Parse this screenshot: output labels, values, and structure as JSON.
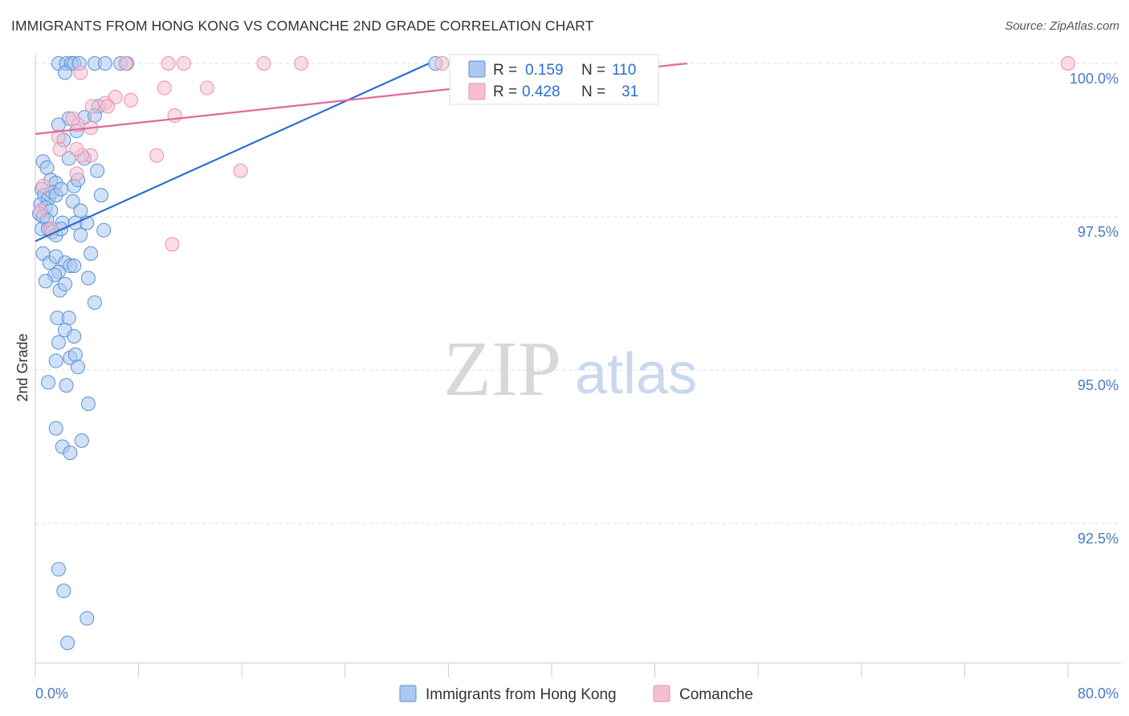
{
  "title": "IMMIGRANTS FROM HONG KONG VS COMANCHE 2ND GRADE CORRELATION CHART",
  "source": "Source: ZipAtlas.com",
  "watermark": {
    "zip": "ZIP",
    "atlas": "atlas"
  },
  "colors": {
    "blue_fill": "#aac8f0",
    "blue_stroke": "#5a8fd8",
    "blue_line": "#2a6fd0",
    "pink_fill": "#f6bfd0",
    "pink_stroke": "#e890b0",
    "pink_line": "#e06a98",
    "tick_text": "#4a7ac4",
    "grid": "#dddddd"
  },
  "legend": {
    "rows": [
      {
        "r_label": "R =",
        "r_value": "0.159",
        "n_label": "N =",
        "n_value": "110",
        "color": "blue"
      },
      {
        "r_label": "R =",
        "r_value": "0.428",
        "n_label": "N =",
        "n_value": "31",
        "color": "pink"
      }
    ]
  },
  "bottom_legend": [
    {
      "label": "Immigrants from Hong Kong",
      "color": "blue"
    },
    {
      "label": "Comanche",
      "color": "pink"
    }
  ],
  "chart_data": {
    "type": "scatter",
    "title": "IMMIGRANTS FROM HONG KONG VS COMANCHE 2ND GRADE CORRELATION CHART",
    "xlabel": "",
    "ylabel": "2nd Grade",
    "xlim": [
      0,
      80
    ],
    "ylim": [
      90.2,
      100.5
    ],
    "x_tick_labels": [
      {
        "value": 0,
        "label": "0.0%"
      },
      {
        "value": 80,
        "label": "80.0%"
      }
    ],
    "x_minor_ticks": [
      0,
      8,
      16,
      24,
      32,
      40,
      48,
      56,
      64,
      72,
      80
    ],
    "y_ticks": [
      {
        "value": 100,
        "label": "100.0%"
      },
      {
        "value": 97.5,
        "label": "97.5%"
      },
      {
        "value": 95,
        "label": "95.0%"
      },
      {
        "value": 92.5,
        "label": "92.5%"
      }
    ],
    "grid": "horizontal dashed",
    "legend_placement": "top",
    "series": [
      {
        "name": "Immigrants from Hong Kong",
        "color": "blue",
        "R": 0.159,
        "N": 110,
        "trend": {
          "x": [
            0,
            30.5
          ],
          "y": [
            97.1,
            100.0
          ]
        },
        "points": [
          [
            1.8,
            100
          ],
          [
            2.4,
            100
          ],
          [
            2.8,
            100
          ],
          [
            3.0,
            100
          ],
          [
            3.4,
            100
          ],
          [
            4.6,
            100
          ],
          [
            5.4,
            100
          ],
          [
            6.6,
            100
          ],
          [
            7.1,
            100
          ],
          [
            31.0,
            100
          ],
          [
            2.3,
            99.85
          ],
          [
            4.9,
            99.3
          ],
          [
            2.6,
            99.1
          ],
          [
            1.8,
            99.0
          ],
          [
            3.8,
            99.12
          ],
          [
            4.6,
            99.15
          ],
          [
            3.2,
            98.9
          ],
          [
            2.2,
            98.75
          ],
          [
            0.6,
            98.4
          ],
          [
            0.9,
            98.3
          ],
          [
            1.2,
            98.1
          ],
          [
            1.6,
            98.05
          ],
          [
            2.6,
            98.45
          ],
          [
            3.8,
            98.45
          ],
          [
            4.8,
            98.25
          ],
          [
            3.0,
            98.0
          ],
          [
            3.3,
            98.1
          ],
          [
            0.5,
            97.95
          ],
          [
            0.7,
            97.85
          ],
          [
            1.0,
            97.8
          ],
          [
            1.3,
            97.9
          ],
          [
            1.6,
            97.85
          ],
          [
            2.0,
            97.95
          ],
          [
            0.4,
            97.7
          ],
          [
            0.8,
            97.65
          ],
          [
            1.2,
            97.6
          ],
          [
            2.9,
            97.75
          ],
          [
            5.1,
            97.85
          ],
          [
            0.3,
            97.55
          ],
          [
            0.6,
            97.5
          ],
          [
            0.9,
            97.45
          ],
          [
            2.1,
            97.4
          ],
          [
            3.1,
            97.4
          ],
          [
            4.0,
            97.4
          ],
          [
            3.5,
            97.6
          ],
          [
            0.5,
            97.3
          ],
          [
            1.0,
            97.3
          ],
          [
            1.3,
            97.25
          ],
          [
            1.6,
            97.2
          ],
          [
            2.0,
            97.3
          ],
          [
            3.5,
            97.2
          ],
          [
            5.3,
            97.28
          ],
          [
            0.6,
            96.9
          ],
          [
            1.1,
            96.75
          ],
          [
            1.6,
            96.85
          ],
          [
            2.3,
            96.75
          ],
          [
            2.7,
            96.7
          ],
          [
            3.0,
            96.7
          ],
          [
            1.8,
            96.6
          ],
          [
            1.5,
            96.55
          ],
          [
            4.3,
            96.9
          ],
          [
            0.8,
            96.45
          ],
          [
            1.9,
            96.3
          ],
          [
            2.3,
            96.4
          ],
          [
            4.1,
            96.5
          ],
          [
            4.6,
            96.1
          ],
          [
            1.7,
            95.85
          ],
          [
            2.6,
            95.85
          ],
          [
            2.3,
            95.65
          ],
          [
            3.0,
            95.55
          ],
          [
            1.8,
            95.45
          ],
          [
            2.7,
            95.2
          ],
          [
            3.1,
            95.25
          ],
          [
            1.6,
            95.15
          ],
          [
            3.3,
            95.05
          ],
          [
            1.0,
            94.8
          ],
          [
            2.4,
            94.75
          ],
          [
            4.1,
            94.45
          ],
          [
            1.6,
            94.05
          ],
          [
            2.1,
            93.75
          ],
          [
            2.7,
            93.65
          ],
          [
            3.6,
            93.85
          ],
          [
            1.8,
            91.75
          ],
          [
            2.2,
            91.4
          ],
          [
            4.0,
            90.95
          ],
          [
            2.5,
            90.55
          ]
        ]
      },
      {
        "name": "Comanche",
        "color": "pink",
        "R": 0.428,
        "N": 31,
        "trend": {
          "x": [
            0,
            50.5
          ],
          "y": [
            98.85,
            100.0
          ]
        },
        "points": [
          [
            7.0,
            100
          ],
          [
            10.3,
            100
          ],
          [
            11.5,
            100
          ],
          [
            17.7,
            100
          ],
          [
            20.6,
            100
          ],
          [
            31.5,
            100
          ],
          [
            80.0,
            100
          ],
          [
            3.5,
            99.85
          ],
          [
            10.0,
            99.6
          ],
          [
            13.3,
            99.6
          ],
          [
            5.4,
            99.35
          ],
          [
            6.2,
            99.45
          ],
          [
            7.4,
            99.4
          ],
          [
            4.4,
            99.3
          ],
          [
            5.6,
            99.3
          ],
          [
            3.3,
            99.0
          ],
          [
            4.3,
            98.95
          ],
          [
            10.8,
            99.15
          ],
          [
            2.9,
            99.1
          ],
          [
            1.8,
            98.8
          ],
          [
            4.3,
            98.5
          ],
          [
            9.4,
            98.5
          ],
          [
            3.6,
            98.5
          ],
          [
            3.2,
            98.6
          ],
          [
            1.9,
            98.6
          ],
          [
            3.2,
            98.2
          ],
          [
            15.9,
            98.25
          ],
          [
            0.6,
            98.0
          ],
          [
            0.4,
            97.6
          ],
          [
            1.2,
            97.3
          ],
          [
            10.6,
            97.05
          ]
        ]
      }
    ]
  }
}
